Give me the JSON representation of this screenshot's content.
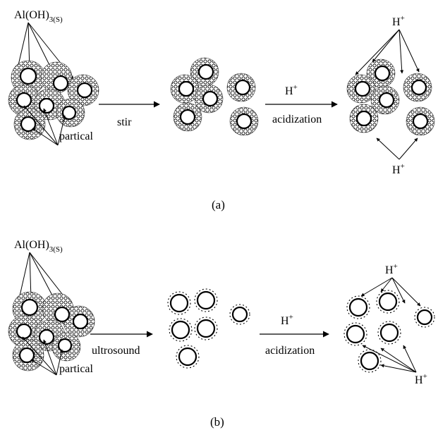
{
  "panels": [
    {
      "id": "a",
      "caption": "(a)",
      "reactant_label": "Al(OH)",
      "reactant_subscript": "3(S)",
      "particle_label": "partical",
      "step1_label": "stir",
      "acid_symbol": "H",
      "acid_charge": "+",
      "step2_label": "acidization",
      "h_top": "H",
      "h_top_charge": "+",
      "h_bottom": "H",
      "h_bottom_charge": "+"
    },
    {
      "id": "b",
      "caption": "(b)",
      "reactant_label": "Al(OH)",
      "reactant_subscript": "3(S)",
      "particle_label": "partical",
      "step1_label": "ultrosound",
      "acid_symbol": "H",
      "acid_charge": "+",
      "step2_label": "acidization",
      "h_top": "H",
      "h_top_charge": "+",
      "h_bottom": "H",
      "h_bottom_charge": "+"
    }
  ]
}
